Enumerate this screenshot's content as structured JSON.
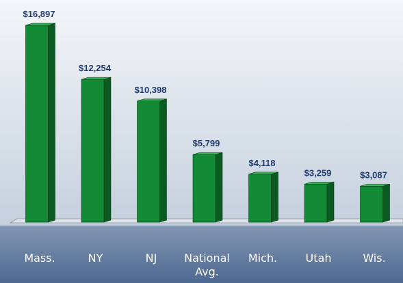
{
  "chart_data": {
    "type": "bar",
    "categories": [
      "Mass.",
      "NY",
      "NJ",
      "National Avg.",
      "Mich.",
      "Utah",
      "Wis."
    ],
    "values": [
      16897,
      12254,
      10398,
      5799,
      4118,
      3259,
      3087
    ],
    "value_labels": [
      "$16,897",
      "$12,254",
      "$10,398",
      "$5,799",
      "$4,118",
      "$3,259",
      "$3,087"
    ],
    "color": "#138a36"
  }
}
